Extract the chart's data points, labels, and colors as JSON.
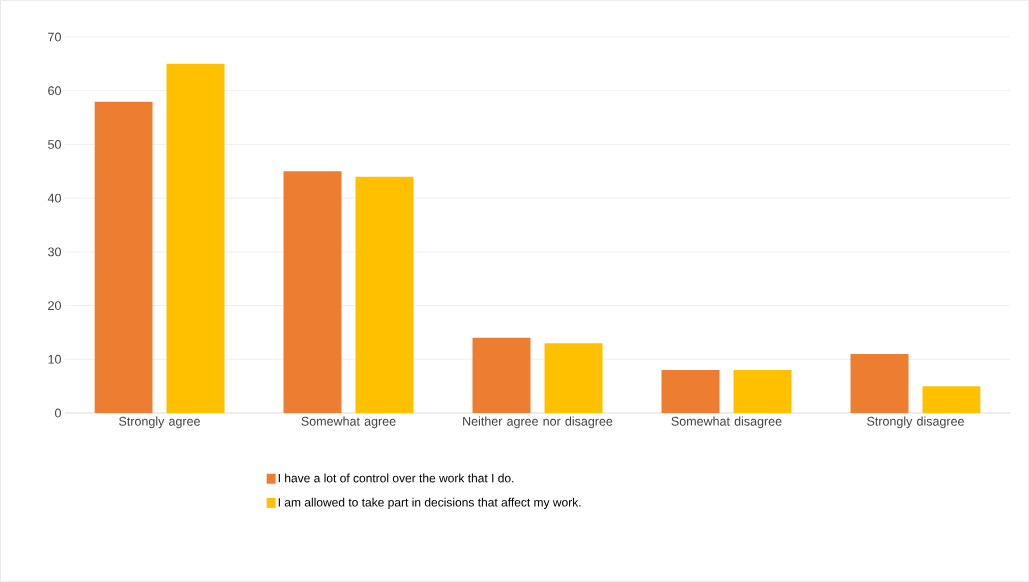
{
  "chart_data": {
    "type": "bar",
    "categories": [
      "Strongly agree",
      "Somewhat agree",
      "Neither agree nor disagree",
      "Somewhat disagree",
      "Strongly disagree"
    ],
    "series": [
      {
        "name": "I have a lot of control over the work that I do.",
        "color": "#ed7d31",
        "values": [
          58,
          45,
          14,
          8,
          11
        ]
      },
      {
        "name": "I am allowed to take part in decisions that affect my work.",
        "color": "#ffc000",
        "values": [
          65,
          44,
          13,
          8,
          5
        ]
      }
    ],
    "ylim": [
      0,
      70
    ],
    "yticks": [
      0,
      10,
      20,
      30,
      40,
      50,
      60,
      70
    ],
    "grid": "y",
    "legend": "bottom"
  }
}
